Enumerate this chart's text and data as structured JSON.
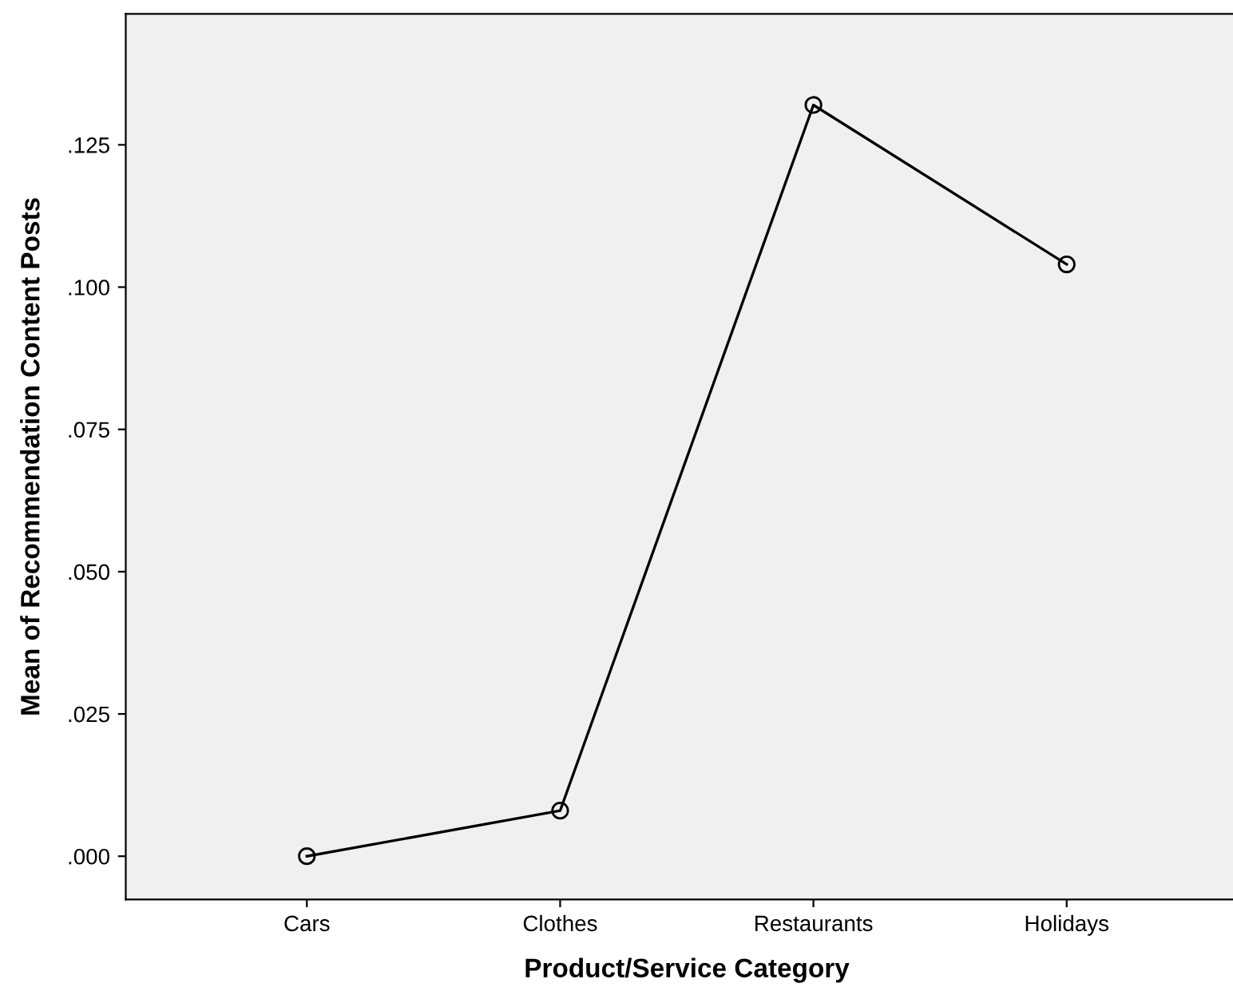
{
  "chart_data": {
    "type": "line",
    "xlabel": "Product/Service Category",
    "ylabel": "Mean of Recommendation Content Posts",
    "categories": [
      "Cars",
      "Clothes",
      "Restaurants",
      "Holidays"
    ],
    "series": [
      {
        "color": "#000000",
        "values": [
          0.0,
          0.008,
          0.132,
          0.104
        ]
      }
    ],
    "ylim": [
      -0.0076,
      0.148
    ],
    "yticks": [
      {
        "value": 0,
        "label": ".000"
      },
      {
        "value": 0.025,
        "label": ".025"
      },
      {
        "value": 0.05,
        "label": ".050"
      },
      {
        "value": 0.075,
        "label": ".075"
      },
      {
        "value": 0.1,
        "label": ".100"
      },
      {
        "value": 0.125,
        "label": ".125"
      }
    ],
    "marker": "circle",
    "line_style": "solid",
    "grid": false,
    "legend": false
  }
}
